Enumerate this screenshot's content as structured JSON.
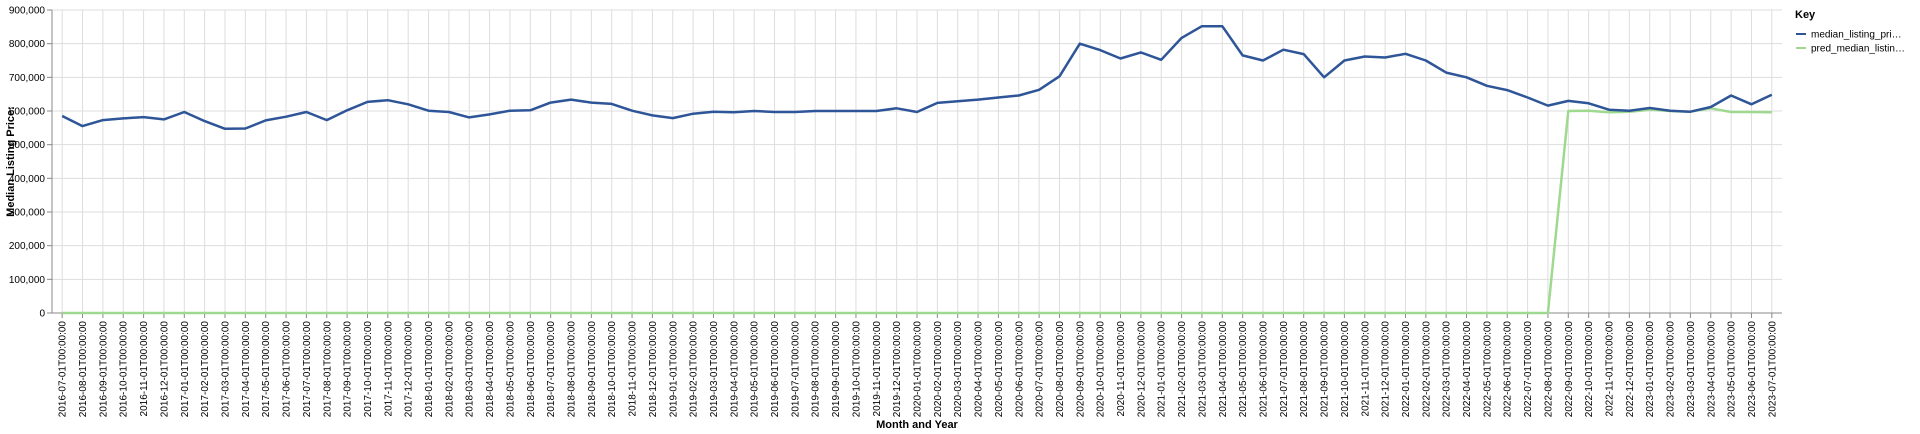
{
  "chart_data": {
    "type": "line",
    "xlabel": "Month and Year",
    "ylabel": "Median Listing Price:",
    "ylim": [
      0,
      900000
    ],
    "yticks": [
      "0",
      "100,000",
      "200,000",
      "300,000",
      "400,000",
      "500,000",
      "600,000",
      "700,000",
      "800,000",
      "900,000"
    ],
    "grid": true,
    "legend": {
      "title": "Key",
      "placement": "top-right"
    },
    "x": [
      "2016-07-01T00:00:00",
      "2016-08-01T00:00:00",
      "2016-09-01T00:00:00",
      "2016-10-01T00:00:00",
      "2016-11-01T00:00:00",
      "2016-12-01T00:00:00",
      "2017-01-01T00:00:00",
      "2017-02-01T00:00:00",
      "2017-03-01T00:00:00",
      "2017-04-01T00:00:00",
      "2017-05-01T00:00:00",
      "2017-06-01T00:00:00",
      "2017-07-01T00:00:00",
      "2017-08-01T00:00:00",
      "2017-09-01T00:00:00",
      "2017-10-01T00:00:00",
      "2017-11-01T00:00:00",
      "2017-12-01T00:00:00",
      "2018-01-01T00:00:00",
      "2018-02-01T00:00:00",
      "2018-03-01T00:00:00",
      "2018-04-01T00:00:00",
      "2018-05-01T00:00:00",
      "2018-06-01T00:00:00",
      "2018-07-01T00:00:00",
      "2018-08-01T00:00:00",
      "2018-09-01T00:00:00",
      "2018-10-01T00:00:00",
      "2018-11-01T00:00:00",
      "2018-12-01T00:00:00",
      "2019-01-01T00:00:00",
      "2019-02-01T00:00:00",
      "2019-03-01T00:00:00",
      "2019-04-01T00:00:00",
      "2019-05-01T00:00:00",
      "2019-06-01T00:00:00",
      "2019-07-01T00:00:00",
      "2019-08-01T00:00:00",
      "2019-09-01T00:00:00",
      "2019-10-01T00:00:00",
      "2019-11-01T00:00:00",
      "2019-12-01T00:00:00",
      "2020-01-01T00:00:00",
      "2020-02-01T00:00:00",
      "2020-03-01T00:00:00",
      "2020-04-01T00:00:00",
      "2020-05-01T00:00:00",
      "2020-06-01T00:00:00",
      "2020-07-01T00:00:00",
      "2020-08-01T00:00:00",
      "2020-09-01T00:00:00",
      "2020-10-01T00:00:00",
      "2020-11-01T00:00:00",
      "2020-12-01T00:00:00",
      "2021-01-01T00:00:00",
      "2021-02-01T00:00:00",
      "2021-03-01T00:00:00",
      "2021-04-01T00:00:00",
      "2021-05-01T00:00:00",
      "2021-06-01T00:00:00",
      "2021-07-01T00:00:00",
      "2021-08-01T00:00:00",
      "2021-09-01T00:00:00",
      "2021-10-01T00:00:00",
      "2021-11-01T00:00:00",
      "2021-12-01T00:00:00",
      "2022-01-01T00:00:00",
      "2022-02-01T00:00:00",
      "2022-03-01T00:00:00",
      "2022-04-01T00:00:00",
      "2022-05-01T00:00:00",
      "2022-06-01T00:00:00",
      "2022-07-01T00:00:00",
      "2022-08-01T00:00:00",
      "2022-09-01T00:00:00",
      "2022-10-01T00:00:00",
      "2022-11-01T00:00:00",
      "2022-12-01T00:00:00",
      "2023-01-01T00:00:00",
      "2023-02-01T00:00:00",
      "2023-03-01T00:00:00",
      "2023-04-01T00:00:00",
      "2023-05-01T00:00:00",
      "2023-06-01T00:00:00",
      "2023-07-01T00:00:00"
    ],
    "series": [
      {
        "name": "median_listing_pri…",
        "color": "#2e5597",
        "values": [
          585000,
          555000,
          573000,
          578000,
          582000,
          575000,
          597000,
          570000,
          547000,
          548000,
          572000,
          583000,
          597000,
          573000,
          602000,
          627000,
          632000,
          620000,
          601000,
          597000,
          581000,
          590000,
          601000,
          602000,
          625000,
          634000,
          625000,
          621000,
          601000,
          587000,
          579000,
          592000,
          598000,
          596000,
          600000,
          597000,
          597000,
          600000,
          600000,
          600000,
          600000,
          608000,
          597000,
          624000,
          629000,
          634000,
          640000,
          646000,
          663000,
          703000,
          800000,
          781000,
          756000,
          774000,
          752000,
          817000,
          852000,
          852000,
          765000,
          750000,
          782000,
          769000,
          700000,
          750000,
          762000,
          759000,
          770000,
          750000,
          714000,
          700000,
          675000,
          662000,
          640000,
          616000,
          630000,
          623000,
          604000,
          601000,
          609000,
          601000,
          598000,
          612000,
          646000,
          620000,
          648000
        ]
      },
      {
        "name": "pred_median_listin…",
        "color": "#9fd88f",
        "values": [
          0,
          0,
          0,
          0,
          0,
          0,
          0,
          0,
          0,
          0,
          0,
          0,
          0,
          0,
          0,
          0,
          0,
          0,
          0,
          0,
          0,
          0,
          0,
          0,
          0,
          0,
          0,
          0,
          0,
          0,
          0,
          0,
          0,
          0,
          0,
          0,
          0,
          0,
          0,
          0,
          0,
          0,
          0,
          0,
          0,
          0,
          0,
          0,
          0,
          0,
          0,
          0,
          0,
          0,
          0,
          0,
          0,
          0,
          0,
          0,
          0,
          0,
          0,
          0,
          0,
          0,
          0,
          0,
          0,
          0,
          0,
          0,
          0,
          0,
          600000,
          601000,
          596000,
          598000,
          604000,
          600000,
          598000,
          608000,
          597000,
          597000,
          596000
        ]
      }
    ]
  }
}
